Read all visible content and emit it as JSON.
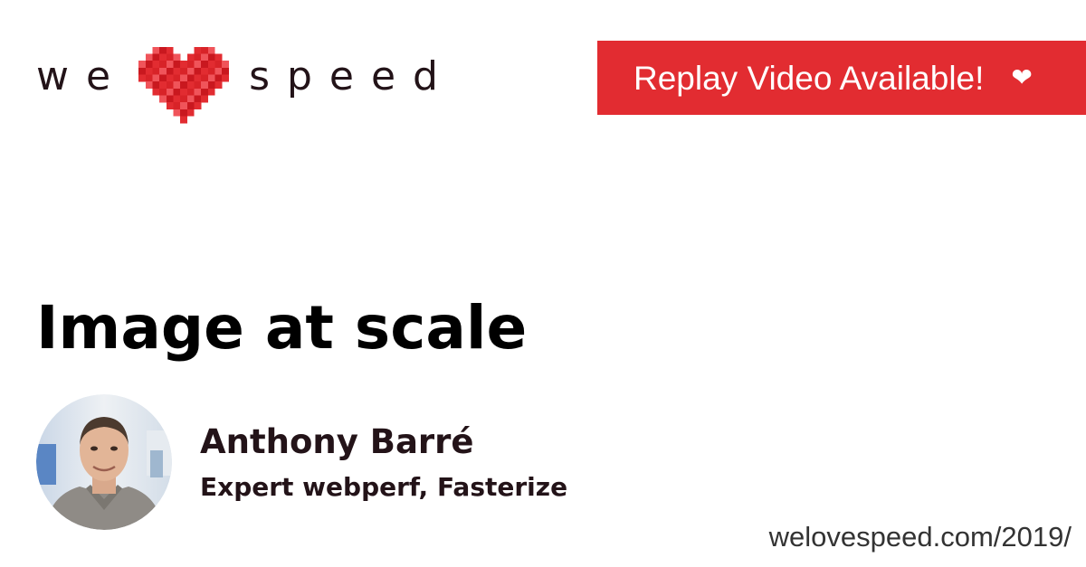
{
  "logo": {
    "word_left": "we",
    "word_right": "speed",
    "heart_icon": "pixel-heart-icon",
    "heart_colors": [
      "#e22c31",
      "#c9181f",
      "#f0545a",
      "#d82328"
    ]
  },
  "badge": {
    "label": "Replay Video Available!",
    "icon": "heart-icon",
    "icon_glyph": "❤",
    "background": "#e22c31"
  },
  "title": "Image at scale",
  "speaker": {
    "name": "Anthony Barré",
    "role": "Expert webperf, Fasterize",
    "avatar": "speaker-photo"
  },
  "footer": {
    "url": "welovespeed.com/2019/"
  },
  "colors": {
    "accent": "#e22c31",
    "text_dark": "#231318",
    "url_text": "#333333",
    "background": "#ffffff"
  }
}
